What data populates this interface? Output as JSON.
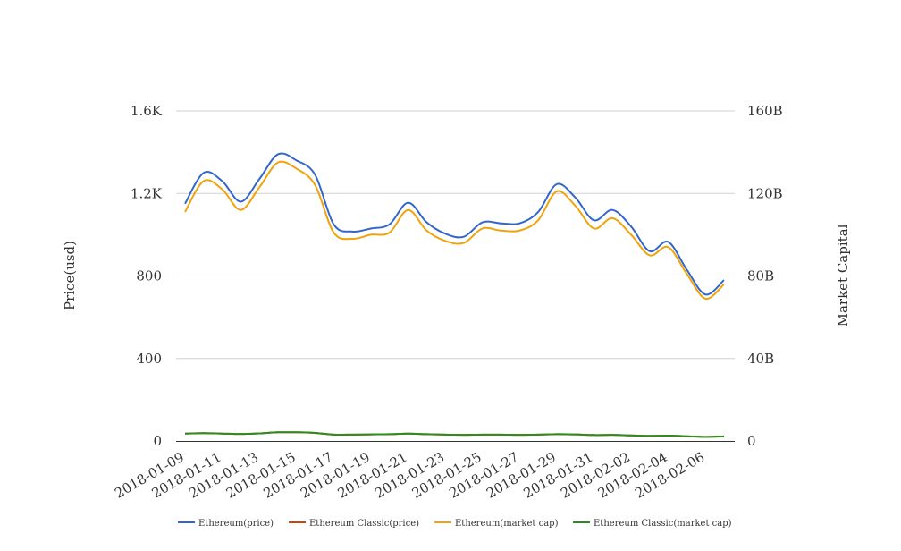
{
  "chart_data": {
    "type": "line",
    "title": "",
    "xlabel": "",
    "ylabel": "Price(usd)",
    "y2label": "Market Capital",
    "x": [
      "2018-01-09",
      "2018-01-10",
      "2018-01-11",
      "2018-01-12",
      "2018-01-13",
      "2018-01-14",
      "2018-01-15",
      "2018-01-16",
      "2018-01-17",
      "2018-01-18",
      "2018-01-19",
      "2018-01-20",
      "2018-01-21",
      "2018-01-22",
      "2018-01-23",
      "2018-01-24",
      "2018-01-25",
      "2018-01-26",
      "2018-01-27",
      "2018-01-28",
      "2018-01-29",
      "2018-01-30",
      "2018-01-31",
      "2018-02-01",
      "2018-02-02",
      "2018-02-03",
      "2018-02-04",
      "2018-02-05",
      "2018-02-06",
      "2018-02-07"
    ],
    "x_tick_labels": [
      "2018-01-09",
      "2018-01-11",
      "2018-01-13",
      "2018-01-15",
      "2018-01-17",
      "2018-01-19",
      "2018-01-21",
      "2018-01-23",
      "2018-01-25",
      "2018-01-27",
      "2018-01-29",
      "2018-01-31",
      "2018-02-02",
      "2018-02-04",
      "2018-02-06"
    ],
    "ylim": [
      0,
      1600
    ],
    "y_ticks": [
      0,
      400,
      800,
      1200,
      1600
    ],
    "y_tick_labels": [
      "0",
      "400",
      "800",
      "1.2K",
      "1.6K"
    ],
    "y2lim": [
      0,
      160
    ],
    "y2_unit": "B",
    "y2_tick_labels": [
      "0",
      "40B",
      "80B",
      "120B",
      "160B"
    ],
    "grid": true,
    "legend_position": "bottom",
    "series": [
      {
        "name": "Ethereum(price)",
        "axis": "left",
        "color": "#3366cc",
        "values": [
          1150,
          1300,
          1260,
          1160,
          1270,
          1390,
          1360,
          1290,
          1050,
          1015,
          1030,
          1050,
          1155,
          1060,
          1005,
          990,
          1060,
          1055,
          1055,
          1110,
          1245,
          1180,
          1070,
          1120,
          1040,
          920,
          965,
          830,
          710,
          780
        ]
      },
      {
        "name": "Ethereum Classic(price)",
        "axis": "left",
        "color": "#cc4411",
        "values": [
          36,
          38,
          36,
          34,
          37,
          42,
          42,
          39,
          31,
          31,
          32,
          33,
          36,
          33,
          31,
          30,
          31,
          31,
          30,
          31,
          33,
          32,
          29,
          30,
          27,
          25,
          26,
          23,
          20,
          22
        ]
      },
      {
        "name": "Ethereum(market cap)",
        "axis": "right",
        "color": "#f0a30a",
        "values": [
          111,
          126,
          122,
          112,
          123,
          135,
          132,
          124,
          101,
          98,
          100,
          101,
          112,
          102,
          97,
          96,
          103,
          102,
          102,
          107,
          121,
          114,
          103,
          108,
          100,
          90,
          94,
          81,
          69,
          76
        ]
      },
      {
        "name": "Ethereum Classic(market cap)",
        "axis": "right",
        "color": "#2e8b1e",
        "values": [
          3.6,
          3.8,
          3.6,
          3.4,
          3.7,
          4.2,
          4.2,
          3.9,
          3.1,
          3.1,
          3.2,
          3.3,
          3.6,
          3.3,
          3.1,
          3.0,
          3.1,
          3.1,
          3.0,
          3.1,
          3.3,
          3.2,
          2.9,
          3.0,
          2.7,
          2.5,
          2.6,
          2.3,
          2.0,
          2.2
        ]
      }
    ]
  }
}
